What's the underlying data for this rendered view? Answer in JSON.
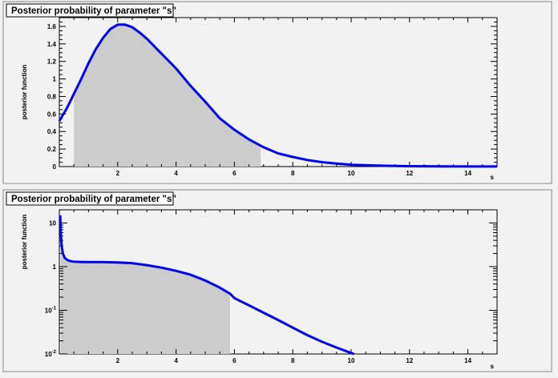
{
  "chart_data": [
    {
      "type": "line",
      "title": "Posterior probability of parameter \"s\"",
      "xlabel": "s",
      "ylabel": "posterior function",
      "xlim": [
        0,
        15
      ],
      "ylim": [
        0,
        1.7
      ],
      "y_scale": "linear",
      "x_ticks": [
        2,
        4,
        6,
        8,
        10,
        12,
        14
      ],
      "y_ticks": [
        0,
        0.2,
        0.4,
        0.6,
        0.8,
        1,
        1.2,
        1.4,
        1.6
      ],
      "y_tick_labels": [
        "0",
        "0.2",
        "0.4",
        "0.6",
        "0.8",
        "1",
        "1.2",
        "1.4",
        "1.6"
      ],
      "shaded_interval": [
        0.5,
        6.9
      ],
      "colors": {
        "line": "#0000ee",
        "shade": "#cccccc",
        "frame_bg": "#f2f2f2",
        "plot_bg": "#f2f2f2"
      },
      "series": [
        {
          "x": [
            0,
            0.25,
            0.5,
            0.75,
            1,
            1.25,
            1.5,
            1.75,
            2,
            2.25,
            2.5,
            2.75,
            3,
            3.5,
            4,
            4.5,
            5,
            5.5,
            6,
            6.5,
            7,
            7.5,
            8,
            8.5,
            9,
            9.5,
            10,
            11,
            12,
            13,
            14,
            15
          ],
          "y": [
            0.52,
            0.66,
            0.83,
            1.0,
            1.18,
            1.34,
            1.47,
            1.57,
            1.62,
            1.62,
            1.59,
            1.53,
            1.46,
            1.29,
            1.12,
            0.92,
            0.74,
            0.55,
            0.42,
            0.31,
            0.22,
            0.15,
            0.11,
            0.075,
            0.05,
            0.035,
            0.02,
            0.01,
            0.005,
            0.002,
            0.001,
            0.0005
          ]
        }
      ]
    },
    {
      "type": "line",
      "title": "Posterior probability of parameter \"s\"",
      "xlabel": "s",
      "ylabel": "posterior function",
      "xlim": [
        0,
        15
      ],
      "ylim": [
        0.01,
        20
      ],
      "y_scale": "log",
      "x_ticks": [
        2,
        4,
        6,
        8,
        10,
        12,
        14
      ],
      "y_ticks": [
        0.01,
        0.1,
        1,
        10
      ],
      "shaded_interval": [
        0.05,
        5.85
      ],
      "colors": {
        "line": "#0000ee",
        "shade": "#cccccc",
        "frame_bg": "#f2f2f2",
        "plot_bg": "#f2f2f2"
      },
      "series": [
        {
          "x": [
            0.03,
            0.05,
            0.08,
            0.12,
            0.18,
            0.25,
            0.35,
            0.5,
            0.75,
            1,
            1.5,
            2,
            2.5,
            3,
            3.5,
            4,
            4.5,
            5,
            5.5,
            5.85,
            6,
            6.5,
            7,
            7.5,
            8,
            8.5,
            9,
            9.5,
            10,
            10.1
          ],
          "y": [
            15,
            6,
            3,
            2,
            1.6,
            1.45,
            1.35,
            1.3,
            1.28,
            1.27,
            1.27,
            1.25,
            1.2,
            1.08,
            0.95,
            0.8,
            0.65,
            0.48,
            0.33,
            0.24,
            0.19,
            0.13,
            0.088,
            0.06,
            0.04,
            0.027,
            0.019,
            0.014,
            0.0105,
            0.01
          ]
        }
      ]
    }
  ],
  "superscripts": {
    "exp_neg1": "-1",
    "exp_neg2": "-2"
  },
  "decade_base": "10"
}
